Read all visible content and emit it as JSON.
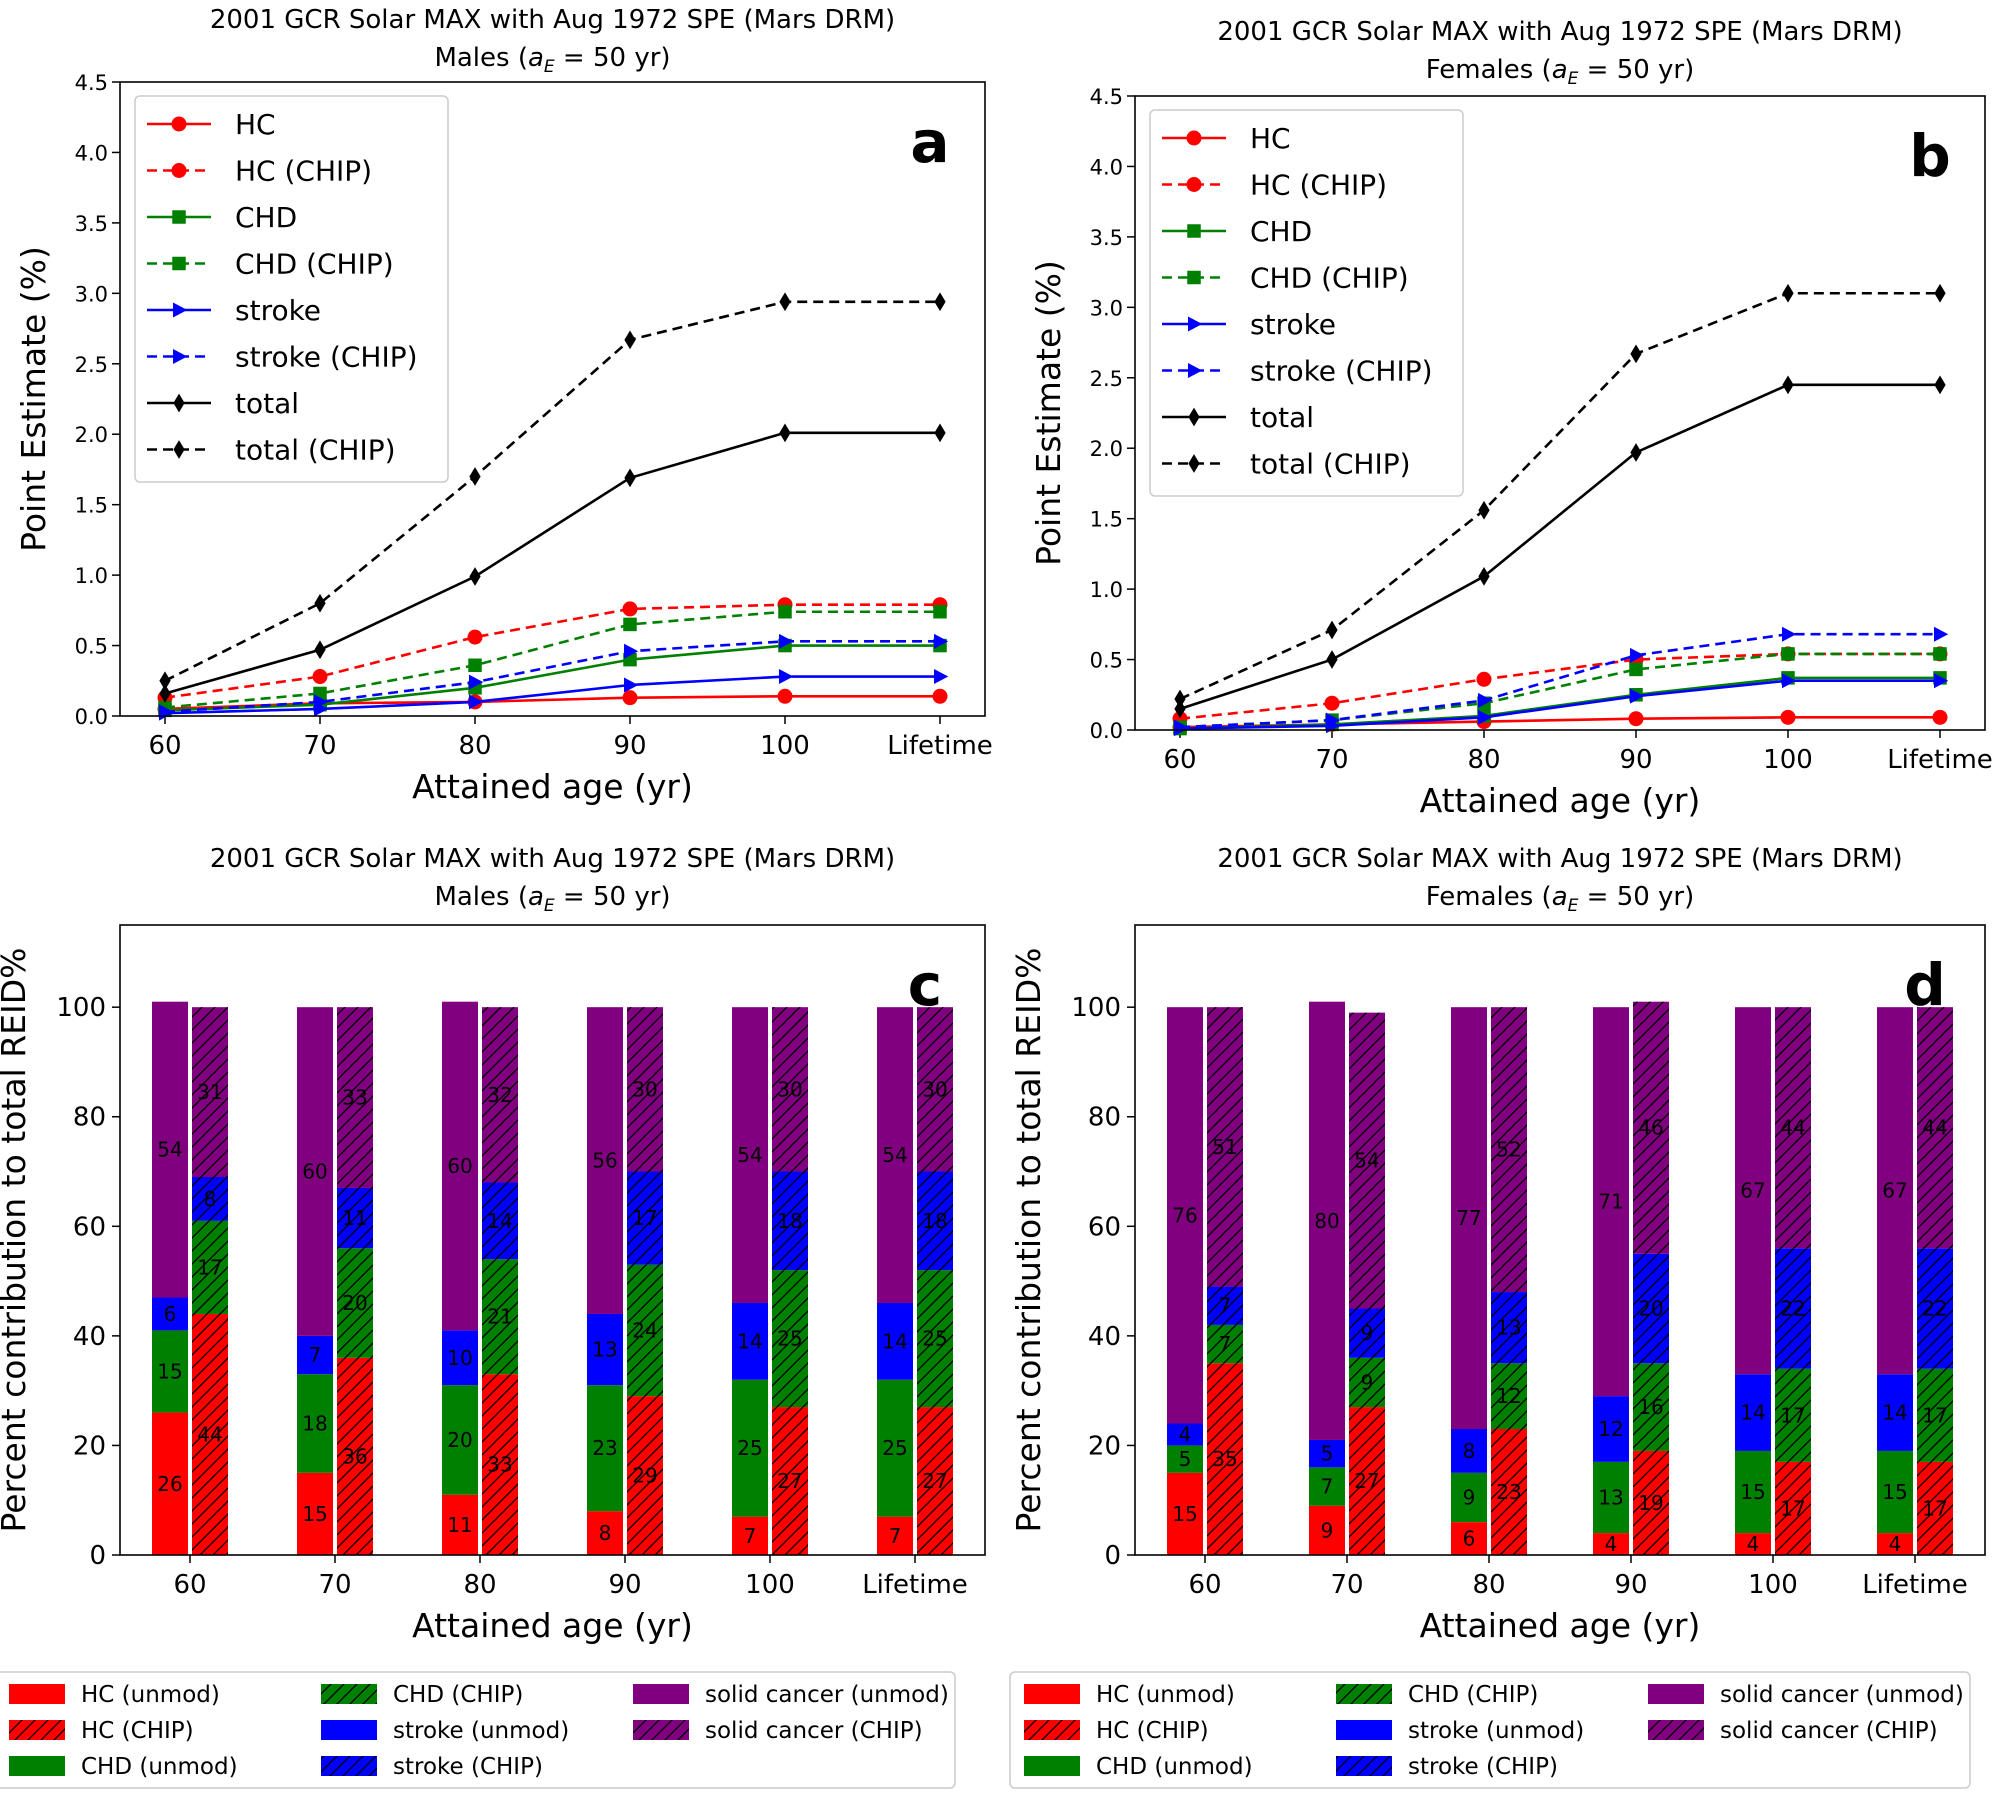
{
  "line_legend_items": [
    {
      "label": "HC",
      "color": "#ff0000",
      "dash": false,
      "marker": "circle"
    },
    {
      "label": "HC (CHIP)",
      "color": "#ff0000",
      "dash": true,
      "marker": "circle"
    },
    {
      "label": "CHD",
      "color": "#008000",
      "dash": false,
      "marker": "square"
    },
    {
      "label": "CHD (CHIP)",
      "color": "#008000",
      "dash": true,
      "marker": "square"
    },
    {
      "label": "stroke",
      "color": "#0000ff",
      "dash": false,
      "marker": "triangle"
    },
    {
      "label": "stroke (CHIP)",
      "color": "#0000ff",
      "dash": true,
      "marker": "triangle"
    },
    {
      "label": "total",
      "color": "#000000",
      "dash": false,
      "marker": "diamond"
    },
    {
      "label": "total (CHIP)",
      "color": "#000000",
      "dash": true,
      "marker": "diamond"
    }
  ],
  "bar_legend_items": [
    {
      "label": "HC (unmod)",
      "color": "#ff0000",
      "hatch": false
    },
    {
      "label": "HC (CHIP)",
      "color": "#ff0000",
      "hatch": true
    },
    {
      "label": "CHD (unmod)",
      "color": "#008000",
      "hatch": false
    },
    {
      "label": "CHD (CHIP)",
      "color": "#008000",
      "hatch": true
    },
    {
      "label": "stroke (unmod)",
      "color": "#0000ff",
      "hatch": false
    },
    {
      "label": "stroke (CHIP)",
      "color": "#0000ff",
      "hatch": true
    },
    {
      "label": "solid cancer (unmod)",
      "color": "#800080",
      "hatch": false
    },
    {
      "label": "solid cancer (CHIP)",
      "color": "#800080",
      "hatch": true
    }
  ],
  "chart_data": [
    {
      "panel": "a",
      "type": "line",
      "title": "2001 GCR Solar MAX with Aug 1972 SPE (Mars DRM)",
      "subtitle_prefix": "Males (",
      "subtitle_suffix": " =  50 yr)",
      "xlabel": "Attained age (yr)",
      "ylabel": "Point Estimate (%)",
      "categories": [
        "60",
        "70",
        "80",
        "90",
        "100",
        "Lifetime"
      ],
      "ylim": [
        0,
        4.5
      ],
      "yticks": [
        "0.0",
        "0.5",
        "1.0",
        "1.5",
        "2.0",
        "2.5",
        "3.0",
        "3.5",
        "4.0",
        "4.5"
      ],
      "series": [
        {
          "name": "HC",
          "values": [
            0.05,
            0.09,
            0.1,
            0.13,
            0.14,
            0.14
          ]
        },
        {
          "name": "HC (CHIP)",
          "values": [
            0.13,
            0.28,
            0.56,
            0.76,
            0.79,
            0.79
          ]
        },
        {
          "name": "CHD",
          "values": [
            0.04,
            0.08,
            0.2,
            0.4,
            0.5,
            0.5
          ]
        },
        {
          "name": "CHD (CHIP)",
          "values": [
            0.06,
            0.16,
            0.36,
            0.65,
            0.74,
            0.74
          ]
        },
        {
          "name": "stroke",
          "values": [
            0.02,
            0.05,
            0.1,
            0.22,
            0.28,
            0.28
          ]
        },
        {
          "name": "stroke (CHIP)",
          "values": [
            0.03,
            0.1,
            0.24,
            0.46,
            0.53,
            0.53
          ]
        },
        {
          "name": "total",
          "values": [
            0.16,
            0.47,
            0.99,
            1.69,
            2.01,
            2.01
          ]
        },
        {
          "name": "total (CHIP)",
          "values": [
            0.25,
            0.8,
            1.7,
            2.67,
            2.94,
            2.94
          ]
        }
      ]
    },
    {
      "panel": "b",
      "type": "line",
      "title": "2001 GCR Solar MAX with Aug 1972 SPE (Mars DRM)",
      "subtitle_prefix": "Females (",
      "subtitle_suffix": " =  50 yr)",
      "xlabel": "Attained age (yr)",
      "ylabel": "Point Estimate (%)",
      "categories": [
        "60",
        "70",
        "80",
        "90",
        "100",
        "Lifetime"
      ],
      "ylim": [
        0,
        4.5
      ],
      "yticks": [
        "0.0",
        "0.5",
        "1.0",
        "1.5",
        "2.0",
        "2.5",
        "3.0",
        "3.5",
        "4.0",
        "4.5"
      ],
      "series": [
        {
          "name": "HC",
          "values": [
            0.02,
            0.04,
            0.06,
            0.08,
            0.09,
            0.09
          ]
        },
        {
          "name": "HC (CHIP)",
          "values": [
            0.08,
            0.19,
            0.36,
            0.5,
            0.54,
            0.54
          ]
        },
        {
          "name": "CHD",
          "values": [
            0.01,
            0.04,
            0.1,
            0.25,
            0.37,
            0.37
          ]
        },
        {
          "name": "CHD (CHIP)",
          "values": [
            0.02,
            0.07,
            0.19,
            0.43,
            0.54,
            0.54
          ]
        },
        {
          "name": "stroke",
          "values": [
            0.01,
            0.03,
            0.09,
            0.24,
            0.35,
            0.35
          ]
        },
        {
          "name": "stroke (CHIP)",
          "values": [
            0.02,
            0.07,
            0.21,
            0.53,
            0.68,
            0.68
          ]
        },
        {
          "name": "total",
          "values": [
            0.15,
            0.5,
            1.09,
            1.97,
            2.45,
            2.45
          ]
        },
        {
          "name": "total (CHIP)",
          "values": [
            0.22,
            0.71,
            1.56,
            2.67,
            3.1,
            3.1
          ]
        }
      ]
    },
    {
      "panel": "c",
      "type": "bar",
      "stacked": true,
      "title": "2001 GCR Solar MAX with Aug 1972 SPE (Mars DRM)",
      "subtitle_prefix": "Males  (",
      "subtitle_suffix": " =  50 yr)",
      "xlabel": "Attained age (yr)",
      "ylabel": "Percent contribution to total REID%",
      "categories": [
        "60",
        "70",
        "80",
        "90",
        "100",
        "Lifetime"
      ],
      "ylim": [
        0,
        115
      ],
      "yticks": [
        "0",
        "20",
        "40",
        "60",
        "80",
        "100"
      ],
      "unmod": {
        "HC": [
          26,
          15,
          11,
          8,
          7,
          7
        ],
        "CHD": [
          15,
          18,
          20,
          23,
          25,
          25
        ],
        "stroke": [
          6,
          7,
          10,
          13,
          14,
          14
        ],
        "solid cancer": [
          54,
          60,
          60,
          56,
          54,
          54
        ]
      },
      "chip": {
        "HC": [
          44,
          36,
          33,
          29,
          27,
          27
        ],
        "CHD": [
          17,
          20,
          21,
          24,
          25,
          25
        ],
        "stroke": [
          8,
          11,
          14,
          17,
          18,
          18
        ],
        "solid cancer": [
          31,
          33,
          32,
          30,
          30,
          30
        ]
      }
    },
    {
      "panel": "d",
      "type": "bar",
      "stacked": true,
      "title": "2001 GCR Solar MAX with Aug 1972 SPE (Mars DRM)",
      "subtitle_prefix": "Females  (",
      "subtitle_suffix": " =  50 yr)",
      "xlabel": "Attained age (yr)",
      "ylabel": "Percent contribution to total REID%",
      "categories": [
        "60",
        "70",
        "80",
        "90",
        "100",
        "Lifetime"
      ],
      "ylim": [
        0,
        115
      ],
      "yticks": [
        "0",
        "20",
        "40",
        "60",
        "80",
        "100"
      ],
      "unmod": {
        "HC": [
          15,
          9,
          6,
          4,
          4,
          4
        ],
        "CHD": [
          5,
          7,
          9,
          13,
          15,
          15
        ],
        "stroke": [
          4,
          5,
          8,
          12,
          14,
          14
        ],
        "solid cancer": [
          76,
          80,
          77,
          71,
          67,
          67
        ]
      },
      "chip": {
        "HC": [
          35,
          27,
          23,
          19,
          17,
          17
        ],
        "CHD": [
          7,
          9,
          12,
          16,
          17,
          17
        ],
        "stroke": [
          7,
          9,
          13,
          20,
          22,
          22
        ],
        "solid cancer": [
          51,
          54,
          52,
          46,
          44,
          44
        ]
      }
    }
  ]
}
